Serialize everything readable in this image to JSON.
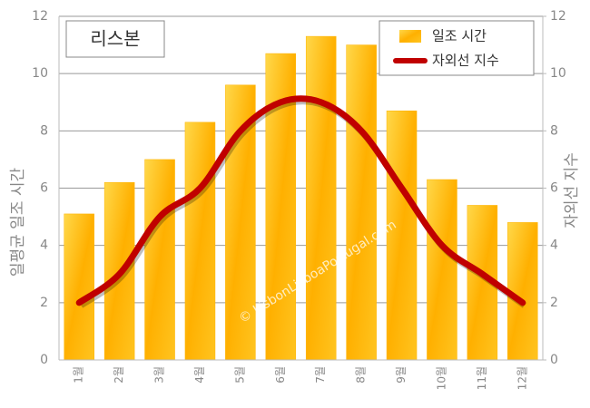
{
  "chart_data": {
    "type": "bar_line",
    "title": "리스본",
    "categories": [
      "1월",
      "2월",
      "3월",
      "4월",
      "5월",
      "6월",
      "7월",
      "8월",
      "9월",
      "10월",
      "11월",
      "12월"
    ],
    "series": [
      {
        "name": "일조 시간",
        "type": "bar",
        "color": "#ffb300",
        "values": [
          5.1,
          6.2,
          7.0,
          8.3,
          9.6,
          10.7,
          11.3,
          11.0,
          8.7,
          6.3,
          5.4,
          4.8
        ]
      },
      {
        "name": "자외선 지수",
        "type": "line",
        "color": "#c00000",
        "axis": "y2",
        "values": [
          2,
          3,
          5,
          6,
          8,
          9,
          9,
          8,
          6,
          4,
          3,
          2
        ]
      }
    ],
    "ylabel": "일평균 일조 시간",
    "y2label": "자외선 지수",
    "ylim": [
      0,
      12
    ],
    "yticks": [
      0,
      2,
      4,
      6,
      8,
      10,
      12
    ],
    "y2lim": [
      0,
      12
    ],
    "y2ticks": [
      0,
      2,
      4,
      6,
      8,
      10,
      12
    ],
    "grid": true,
    "legend": "upper right",
    "watermark": "© LisbonLisboaPortugal.com"
  }
}
